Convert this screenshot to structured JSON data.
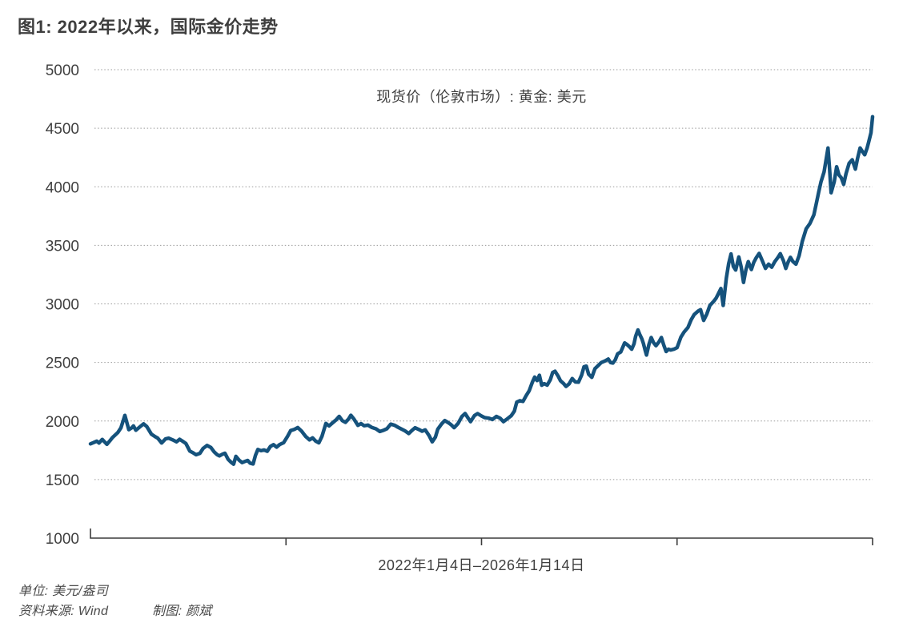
{
  "figure": {
    "title": "图1: 2022年以来，国际金价走势"
  },
  "footer": {
    "unit_label": "单位: 美元/盎司",
    "source_label": "资料来源: Wind",
    "credit_label": "制图: 颜斌"
  },
  "chart_data": {
    "type": "line",
    "title": "现货价（伦敦市场）: 黄金: 美元",
    "xlabel": "2022年1月4日–2026年1月14日",
    "ylabel": "",
    "unit": "美元/盎司",
    "ylim": [
      1000,
      5000
    ],
    "y_ticks": [
      1000,
      1500,
      2000,
      2500,
      3000,
      3500,
      4000,
      4500,
      5000
    ],
    "x_range": [
      "2022-01-04",
      "2026-01-14"
    ],
    "x_unit": "fraction_of_date_range",
    "grid": "dotted-horizontal",
    "legend": "none",
    "axis_color": "#3c3c3c",
    "grid_color": "#9a9a9a",
    "series": [
      {
        "name": "现货价（伦敦市场）: 黄金: 美元",
        "color": "#15527C",
        "points": [
          [
            0.0,
            1805
          ],
          [
            0.004,
            1816
          ],
          [
            0.008,
            1828
          ],
          [
            0.011,
            1812
          ],
          [
            0.015,
            1843
          ],
          [
            0.021,
            1801
          ],
          [
            0.025,
            1832
          ],
          [
            0.028,
            1858
          ],
          [
            0.035,
            1902
          ],
          [
            0.039,
            1942
          ],
          [
            0.044,
            2048
          ],
          [
            0.049,
            1926
          ],
          [
            0.053,
            1943
          ],
          [
            0.055,
            1958
          ],
          [
            0.058,
            1921
          ],
          [
            0.063,
            1949
          ],
          [
            0.068,
            1976
          ],
          [
            0.072,
            1953
          ],
          [
            0.078,
            1887
          ],
          [
            0.083,
            1865
          ],
          [
            0.086,
            1854
          ],
          [
            0.091,
            1812
          ],
          [
            0.096,
            1847
          ],
          [
            0.1,
            1853
          ],
          [
            0.105,
            1839
          ],
          [
            0.11,
            1822
          ],
          [
            0.114,
            1844
          ],
          [
            0.118,
            1827
          ],
          [
            0.122,
            1808
          ],
          [
            0.127,
            1743
          ],
          [
            0.131,
            1729
          ],
          [
            0.135,
            1712
          ],
          [
            0.14,
            1724
          ],
          [
            0.144,
            1766
          ],
          [
            0.149,
            1791
          ],
          [
            0.154,
            1773
          ],
          [
            0.158,
            1737
          ],
          [
            0.162,
            1712
          ],
          [
            0.165,
            1702
          ],
          [
            0.169,
            1717
          ],
          [
            0.172,
            1725
          ],
          [
            0.176,
            1672
          ],
          [
            0.18,
            1646
          ],
          [
            0.183,
            1631
          ],
          [
            0.186,
            1698
          ],
          [
            0.19,
            1666
          ],
          [
            0.194,
            1645
          ],
          [
            0.198,
            1656
          ],
          [
            0.201,
            1663
          ],
          [
            0.204,
            1641
          ],
          [
            0.208,
            1633
          ],
          [
            0.211,
            1706
          ],
          [
            0.214,
            1757
          ],
          [
            0.218,
            1747
          ],
          [
            0.222,
            1753
          ],
          [
            0.226,
            1741
          ],
          [
            0.23,
            1782
          ],
          [
            0.234,
            1798
          ],
          [
            0.238,
            1777
          ],
          [
            0.242,
            1799
          ],
          [
            0.247,
            1815
          ],
          [
            0.252,
            1869
          ],
          [
            0.256,
            1918
          ],
          [
            0.261,
            1929
          ],
          [
            0.265,
            1944
          ],
          [
            0.27,
            1913
          ],
          [
            0.275,
            1869
          ],
          [
            0.28,
            1839
          ],
          [
            0.284,
            1856
          ],
          [
            0.288,
            1828
          ],
          [
            0.292,
            1814
          ],
          [
            0.296,
            1869
          ],
          [
            0.301,
            1979
          ],
          [
            0.305,
            1958
          ],
          [
            0.309,
            1981
          ],
          [
            0.314,
            2009
          ],
          [
            0.318,
            2039
          ],
          [
            0.322,
            2003
          ],
          [
            0.326,
            1989
          ],
          [
            0.33,
            2017
          ],
          [
            0.333,
            2049
          ],
          [
            0.337,
            2016
          ],
          [
            0.342,
            1963
          ],
          [
            0.346,
            1978
          ],
          [
            0.35,
            1959
          ],
          [
            0.355,
            1965
          ],
          [
            0.36,
            1944
          ],
          [
            0.365,
            1933
          ],
          [
            0.37,
            1910
          ],
          [
            0.375,
            1922
          ],
          [
            0.379,
            1934
          ],
          [
            0.384,
            1974
          ],
          [
            0.389,
            1963
          ],
          [
            0.393,
            1947
          ],
          [
            0.397,
            1933
          ],
          [
            0.402,
            1916
          ],
          [
            0.407,
            1893
          ],
          [
            0.411,
            1919
          ],
          [
            0.415,
            1942
          ],
          [
            0.42,
            1927
          ],
          [
            0.424,
            1913
          ],
          [
            0.428,
            1924
          ],
          [
            0.433,
            1875
          ],
          [
            0.437,
            1822
          ],
          [
            0.441,
            1862
          ],
          [
            0.444,
            1929
          ],
          [
            0.449,
            1976
          ],
          [
            0.453,
            2004
          ],
          [
            0.458,
            1983
          ],
          [
            0.461,
            1969
          ],
          [
            0.465,
            1943
          ],
          [
            0.47,
            1979
          ],
          [
            0.475,
            2039
          ],
          [
            0.479,
            2064
          ],
          [
            0.483,
            2023
          ],
          [
            0.486,
            1994
          ],
          [
            0.491,
            2047
          ],
          [
            0.495,
            2063
          ],
          [
            0.5,
            2043
          ],
          [
            0.504,
            2029
          ],
          [
            0.509,
            2024
          ],
          [
            0.514,
            2013
          ],
          [
            0.519,
            2039
          ],
          [
            0.524,
            2023
          ],
          [
            0.528,
            1994
          ],
          [
            0.533,
            2019
          ],
          [
            0.538,
            2045
          ],
          [
            0.542,
            2084
          ],
          [
            0.545,
            2161
          ],
          [
            0.549,
            2173
          ],
          [
            0.553,
            2167
          ],
          [
            0.557,
            2216
          ],
          [
            0.561,
            2259
          ],
          [
            0.565,
            2331
          ],
          [
            0.568,
            2375
          ],
          [
            0.571,
            2345
          ],
          [
            0.574,
            2391
          ],
          [
            0.577,
            2305
          ],
          [
            0.58,
            2319
          ],
          [
            0.584,
            2307
          ],
          [
            0.588,
            2353
          ],
          [
            0.591,
            2415
          ],
          [
            0.594,
            2425
          ],
          [
            0.598,
            2383
          ],
          [
            0.601,
            2343
          ],
          [
            0.605,
            2319
          ],
          [
            0.608,
            2295
          ],
          [
            0.612,
            2317
          ],
          [
            0.616,
            2363
          ],
          [
            0.62,
            2333
          ],
          [
            0.624,
            2331
          ],
          [
            0.628,
            2393
          ],
          [
            0.631,
            2463
          ],
          [
            0.634,
            2469
          ],
          [
            0.637,
            2399
          ],
          [
            0.641,
            2373
          ],
          [
            0.645,
            2447
          ],
          [
            0.649,
            2473
          ],
          [
            0.653,
            2499
          ],
          [
            0.658,
            2513
          ],
          [
            0.662,
            2529
          ],
          [
            0.665,
            2499
          ],
          [
            0.668,
            2495
          ],
          [
            0.671,
            2523
          ],
          [
            0.674,
            2573
          ],
          [
            0.678,
            2589
          ],
          [
            0.683,
            2667
          ],
          [
            0.686,
            2653
          ],
          [
            0.689,
            2635
          ],
          [
            0.692,
            2613
          ],
          [
            0.695,
            2659
          ],
          [
            0.697,
            2723
          ],
          [
            0.7,
            2778
          ],
          [
            0.702,
            2743
          ],
          [
            0.705,
            2701
          ],
          [
            0.707,
            2663
          ],
          [
            0.709,
            2609
          ],
          [
            0.711,
            2563
          ],
          [
            0.714,
            2653
          ],
          [
            0.717,
            2713
          ],
          [
            0.72,
            2669
          ],
          [
            0.723,
            2643
          ],
          [
            0.727,
            2677
          ],
          [
            0.73,
            2713
          ],
          [
            0.733,
            2649
          ],
          [
            0.736,
            2593
          ],
          [
            0.739,
            2613
          ],
          [
            0.742,
            2606
          ],
          [
            0.746,
            2613
          ],
          [
            0.75,
            2627
          ],
          [
            0.755,
            2717
          ],
          [
            0.759,
            2759
          ],
          [
            0.764,
            2799
          ],
          [
            0.768,
            2863
          ],
          [
            0.772,
            2909
          ],
          [
            0.777,
            2939
          ],
          [
            0.78,
            2951
          ],
          [
            0.784,
            2859
          ],
          [
            0.788,
            2913
          ],
          [
            0.792,
            2987
          ],
          [
            0.797,
            3023
          ],
          [
            0.8,
            3049
          ],
          [
            0.803,
            3089
          ],
          [
            0.806,
            3131
          ],
          [
            0.809,
            2987
          ],
          [
            0.813,
            3219
          ],
          [
            0.816,
            3343
          ],
          [
            0.819,
            3427
          ],
          [
            0.822,
            3319
          ],
          [
            0.825,
            3289
          ],
          [
            0.829,
            3401
          ],
          [
            0.832,
            3313
          ],
          [
            0.835,
            3183
          ],
          [
            0.838,
            3289
          ],
          [
            0.841,
            3361
          ],
          [
            0.845,
            3293
          ],
          [
            0.848,
            3353
          ],
          [
            0.851,
            3391
          ],
          [
            0.855,
            3431
          ],
          [
            0.859,
            3369
          ],
          [
            0.863,
            3303
          ],
          [
            0.867,
            3339
          ],
          [
            0.871,
            3313
          ],
          [
            0.875,
            3361
          ],
          [
            0.879,
            3397
          ],
          [
            0.882,
            3429
          ],
          [
            0.886,
            3369
          ],
          [
            0.889,
            3303
          ],
          [
            0.892,
            3357
          ],
          [
            0.895,
            3397
          ],
          [
            0.898,
            3363
          ],
          [
            0.902,
            3339
          ],
          [
            0.906,
            3411
          ],
          [
            0.91,
            3531
          ],
          [
            0.915,
            3641
          ],
          [
            0.92,
            3687
          ],
          [
            0.925,
            3761
          ],
          [
            0.928,
            3857
          ],
          [
            0.931,
            3951
          ],
          [
            0.934,
            4041
          ],
          [
            0.938,
            4127
          ],
          [
            0.941,
            4251
          ],
          [
            0.943,
            4331
          ],
          [
            0.945,
            4151
          ],
          [
            0.947,
            3949
          ],
          [
            0.951,
            4043
          ],
          [
            0.954,
            4171
          ],
          [
            0.957,
            4101
          ],
          [
            0.96,
            4077
          ],
          [
            0.963,
            4021
          ],
          [
            0.966,
            4111
          ],
          [
            0.97,
            4201
          ],
          [
            0.974,
            4231
          ],
          [
            0.978,
            4151
          ],
          [
            0.981,
            4247
          ],
          [
            0.984,
            4331
          ],
          [
            0.987,
            4301
          ],
          [
            0.99,
            4273
          ],
          [
            0.993,
            4331
          ],
          [
            0.995,
            4381
          ],
          [
            0.998,
            4461
          ],
          [
            1.0,
            4598
          ]
        ]
      }
    ]
  }
}
